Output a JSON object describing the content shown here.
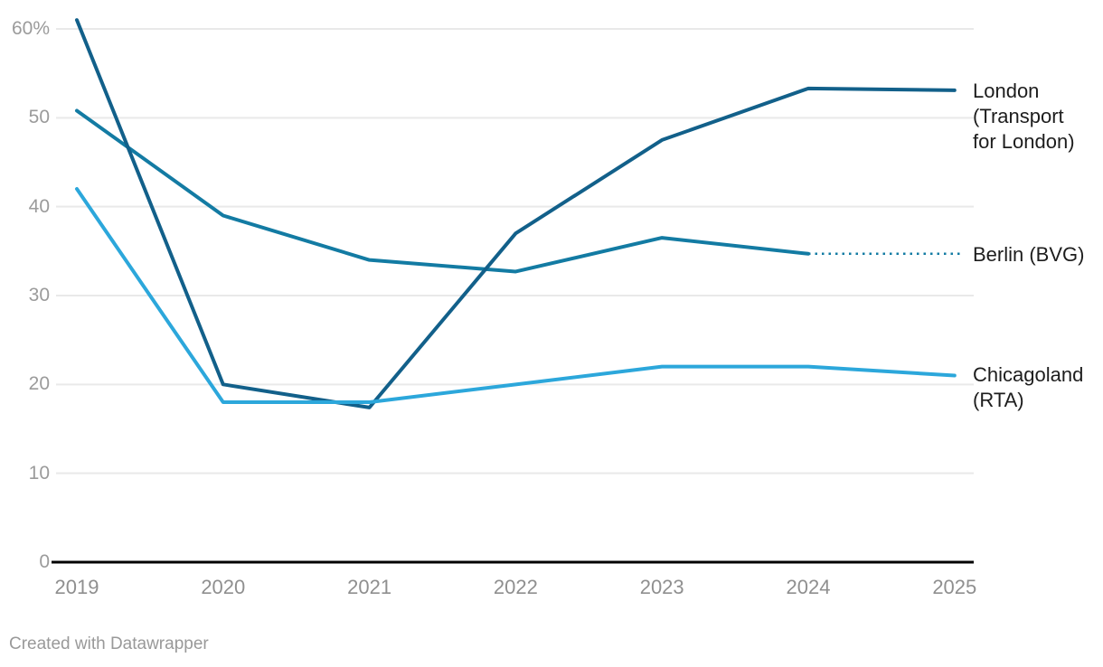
{
  "chart": {
    "footer": "Created with Datawrapper"
  },
  "chart_data": {
    "type": "line",
    "title": "",
    "unit": "%",
    "x": [
      2019,
      2020,
      2021,
      2022,
      2023,
      2024,
      2025
    ],
    "x_tick_labels": [
      "2019",
      "2020",
      "2021",
      "2022",
      "2023",
      "2024",
      "2025"
    ],
    "y_ticks": [
      {
        "value": 60,
        "label": "60%"
      },
      {
        "value": 50,
        "label": "50"
      },
      {
        "value": 40,
        "label": "40"
      },
      {
        "value": 30,
        "label": "30"
      },
      {
        "value": 20,
        "label": "20"
      },
      {
        "value": 10,
        "label": "10"
      },
      {
        "value": 0,
        "label": "0"
      }
    ],
    "ylim": [
      0,
      62
    ],
    "grid": "horizontal",
    "legend_position": "right-direct-labels",
    "series": [
      {
        "name": "London (Transport for London)",
        "label_lines": [
          "London",
          "(Transport",
          "for London)"
        ],
        "color": "#12608a",
        "values": [
          61,
          20,
          17.4,
          37,
          47.5,
          53.3,
          53.1
        ],
        "dotted_from": null
      },
      {
        "name": "Berlin (BVG)",
        "label_lines": [
          "Berlin (BVG)"
        ],
        "color": "#137ba3",
        "values": [
          50.8,
          39,
          34,
          32.7,
          36.5,
          34.7,
          34.7
        ],
        "dotted_from": 5
      },
      {
        "name": "Chicagoland (RTA)",
        "label_lines": [
          "Chicagoland",
          "(RTA)"
        ],
        "color": "#2ca7db",
        "values": [
          42,
          18,
          18,
          20,
          22,
          22,
          21
        ],
        "dotted_from": null
      }
    ],
    "colors": {
      "grid": "#e9e9e9",
      "axis": "#000000",
      "tick_label": "#9b9b9b",
      "series_label": "#1d1d1d",
      "footer": "#999999"
    }
  }
}
